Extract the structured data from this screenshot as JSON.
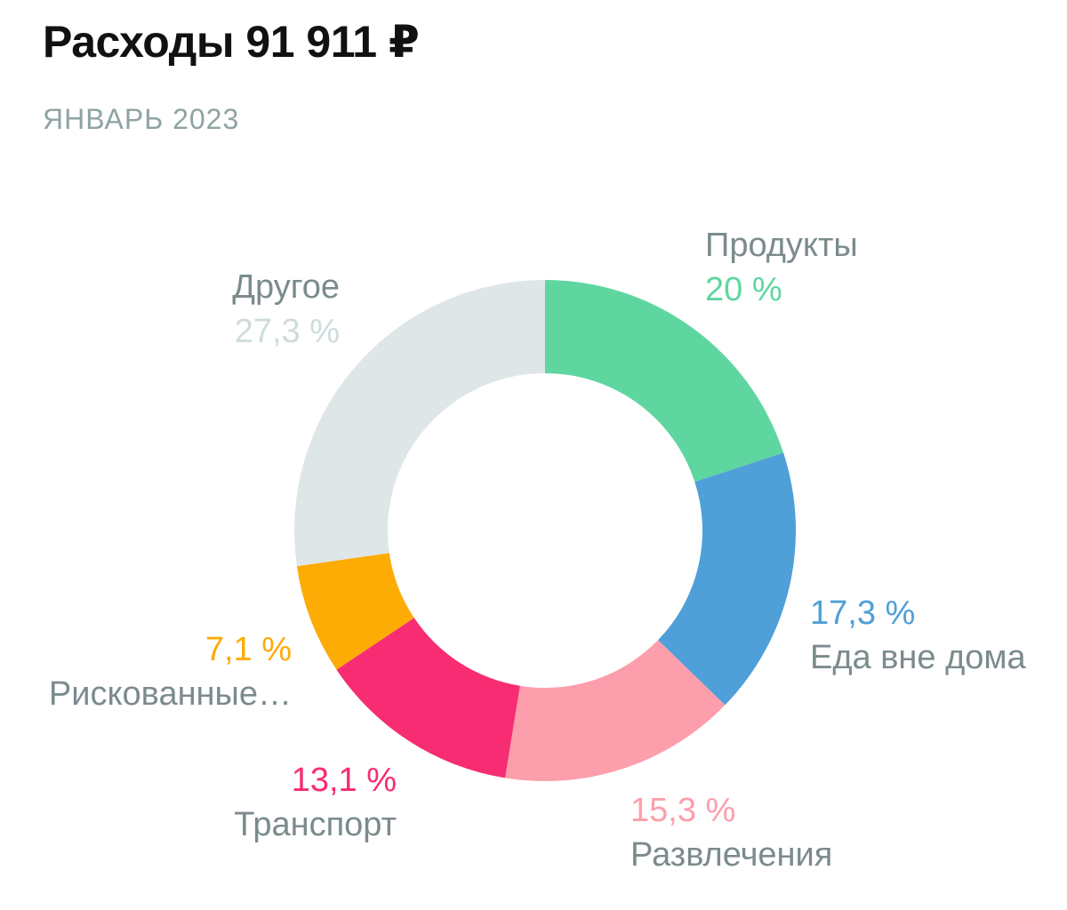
{
  "header": {
    "title": "Расходы 91 911 ₽",
    "subtitle": "ЯНВАРЬ 2023"
  },
  "chart_data": {
    "type": "pie",
    "donut": true,
    "title": "Расходы 91 911 ₽",
    "subtitle": "ЯНВАРЬ 2023",
    "slices": [
      {
        "name": "Продукты",
        "value": 20,
        "label": "20 %",
        "color": "#5fd6a0"
      },
      {
        "name": "Еда вне дома",
        "value": 17.3,
        "label": "17,3 %",
        "color": "#4f9fd8"
      },
      {
        "name": "Развлечения",
        "value": 15.3,
        "label": "15,3 %",
        "color": "#fc9eab"
      },
      {
        "name": "Транспорт",
        "value": 13.1,
        "label": "13,1 %",
        "color": "#f72c72"
      },
      {
        "name": "Рискованные…",
        "value": 7.1,
        "label": "7,1 %",
        "color": "#fdab05"
      },
      {
        "name": "Другое",
        "value": 27.3,
        "label": "27,3 %",
        "color": "#dfe6e7"
      }
    ]
  },
  "colors": {
    "label_name": "#7b8b8d",
    "label_pct_other": "#cfdcdc"
  }
}
